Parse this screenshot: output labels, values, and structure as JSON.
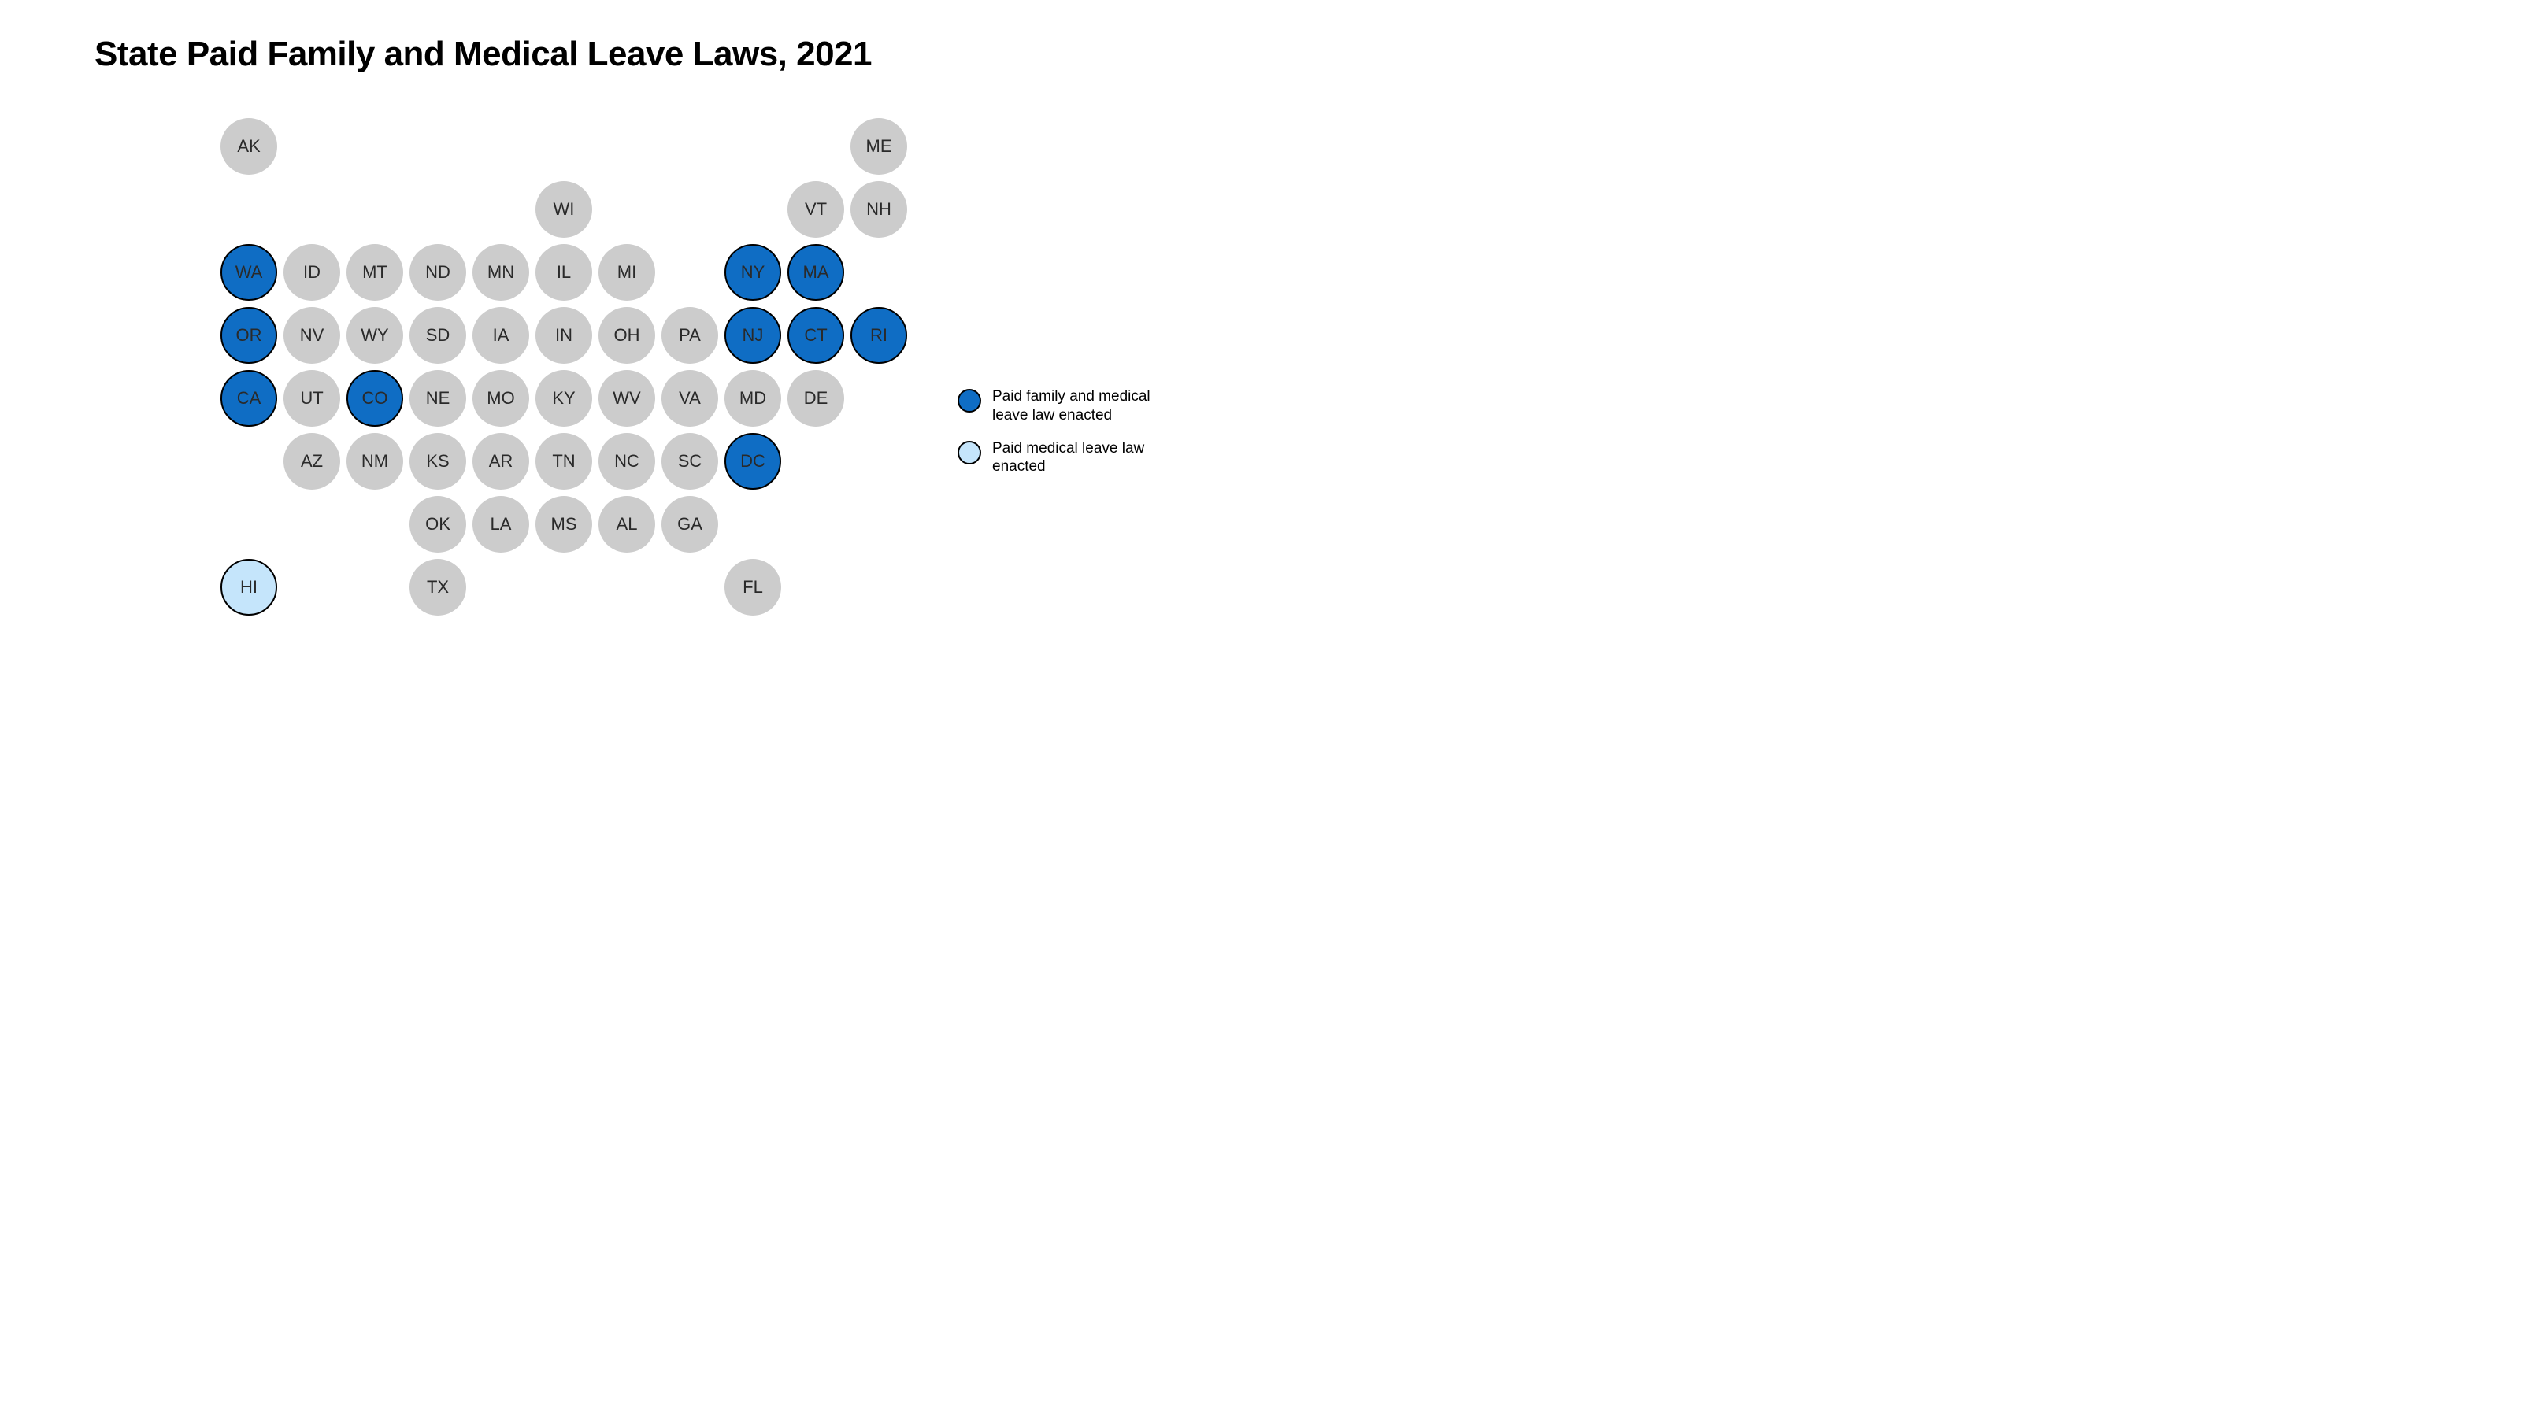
{
  "title": "State Paid Family and Medical Leave Laws, 2021",
  "colors": {
    "none": "#cccccc",
    "full": "#0f6dc4",
    "medical": "#c5e5fb",
    "border": "#000000",
    "text": "#2a2a2a",
    "background": "#ffffff"
  },
  "grid": {
    "cell_spacing": 80,
    "circle_diameter": 72,
    "label_fontsize": 22
  },
  "legend": [
    {
      "color": "#0f6dc4",
      "label": "Paid family and medical leave law enacted"
    },
    {
      "color": "#c5e5fb",
      "label": "Paid medical leave law enacted"
    }
  ],
  "states": [
    {
      "abbr": "AK",
      "col": 0,
      "row": 0,
      "status": "none"
    },
    {
      "abbr": "ME",
      "col": 10,
      "row": 0,
      "status": "none"
    },
    {
      "abbr": "WI",
      "col": 5,
      "row": 1,
      "status": "none"
    },
    {
      "abbr": "VT",
      "col": 9,
      "row": 1,
      "status": "none"
    },
    {
      "abbr": "NH",
      "col": 10,
      "row": 1,
      "status": "none"
    },
    {
      "abbr": "WA",
      "col": 0,
      "row": 2,
      "status": "full"
    },
    {
      "abbr": "ID",
      "col": 1,
      "row": 2,
      "status": "none"
    },
    {
      "abbr": "MT",
      "col": 2,
      "row": 2,
      "status": "none"
    },
    {
      "abbr": "ND",
      "col": 3,
      "row": 2,
      "status": "none"
    },
    {
      "abbr": "MN",
      "col": 4,
      "row": 2,
      "status": "none"
    },
    {
      "abbr": "IL",
      "col": 5,
      "row": 2,
      "status": "none"
    },
    {
      "abbr": "MI",
      "col": 6,
      "row": 2,
      "status": "none"
    },
    {
      "abbr": "NY",
      "col": 8,
      "row": 2,
      "status": "full"
    },
    {
      "abbr": "MA",
      "col": 9,
      "row": 2,
      "status": "full"
    },
    {
      "abbr": "OR",
      "col": 0,
      "row": 3,
      "status": "full"
    },
    {
      "abbr": "NV",
      "col": 1,
      "row": 3,
      "status": "none"
    },
    {
      "abbr": "WY",
      "col": 2,
      "row": 3,
      "status": "none"
    },
    {
      "abbr": "SD",
      "col": 3,
      "row": 3,
      "status": "none"
    },
    {
      "abbr": "IA",
      "col": 4,
      "row": 3,
      "status": "none"
    },
    {
      "abbr": "IN",
      "col": 5,
      "row": 3,
      "status": "none"
    },
    {
      "abbr": "OH",
      "col": 6,
      "row": 3,
      "status": "none"
    },
    {
      "abbr": "PA",
      "col": 7,
      "row": 3,
      "status": "none"
    },
    {
      "abbr": "NJ",
      "col": 8,
      "row": 3,
      "status": "full"
    },
    {
      "abbr": "CT",
      "col": 9,
      "row": 3,
      "status": "full"
    },
    {
      "abbr": "RI",
      "col": 10,
      "row": 3,
      "status": "full"
    },
    {
      "abbr": "CA",
      "col": 0,
      "row": 4,
      "status": "full"
    },
    {
      "abbr": "UT",
      "col": 1,
      "row": 4,
      "status": "none"
    },
    {
      "abbr": "CO",
      "col": 2,
      "row": 4,
      "status": "full"
    },
    {
      "abbr": "NE",
      "col": 3,
      "row": 4,
      "status": "none"
    },
    {
      "abbr": "MO",
      "col": 4,
      "row": 4,
      "status": "none"
    },
    {
      "abbr": "KY",
      "col": 5,
      "row": 4,
      "status": "none"
    },
    {
      "abbr": "WV",
      "col": 6,
      "row": 4,
      "status": "none"
    },
    {
      "abbr": "VA",
      "col": 7,
      "row": 4,
      "status": "none"
    },
    {
      "abbr": "MD",
      "col": 8,
      "row": 4,
      "status": "none"
    },
    {
      "abbr": "DE",
      "col": 9,
      "row": 4,
      "status": "none"
    },
    {
      "abbr": "AZ",
      "col": 1,
      "row": 5,
      "status": "none"
    },
    {
      "abbr": "NM",
      "col": 2,
      "row": 5,
      "status": "none"
    },
    {
      "abbr": "KS",
      "col": 3,
      "row": 5,
      "status": "none"
    },
    {
      "abbr": "AR",
      "col": 4,
      "row": 5,
      "status": "none"
    },
    {
      "abbr": "TN",
      "col": 5,
      "row": 5,
      "status": "none"
    },
    {
      "abbr": "NC",
      "col": 6,
      "row": 5,
      "status": "none"
    },
    {
      "abbr": "SC",
      "col": 7,
      "row": 5,
      "status": "none"
    },
    {
      "abbr": "DC",
      "col": 8,
      "row": 5,
      "status": "full"
    },
    {
      "abbr": "OK",
      "col": 3,
      "row": 6,
      "status": "none"
    },
    {
      "abbr": "LA",
      "col": 4,
      "row": 6,
      "status": "none"
    },
    {
      "abbr": "MS",
      "col": 5,
      "row": 6,
      "status": "none"
    },
    {
      "abbr": "AL",
      "col": 6,
      "row": 6,
      "status": "none"
    },
    {
      "abbr": "GA",
      "col": 7,
      "row": 6,
      "status": "none"
    },
    {
      "abbr": "HI",
      "col": 0,
      "row": 7,
      "status": "medical"
    },
    {
      "abbr": "TX",
      "col": 3,
      "row": 7,
      "status": "none"
    },
    {
      "abbr": "FL",
      "col": 8,
      "row": 7,
      "status": "none"
    }
  ]
}
